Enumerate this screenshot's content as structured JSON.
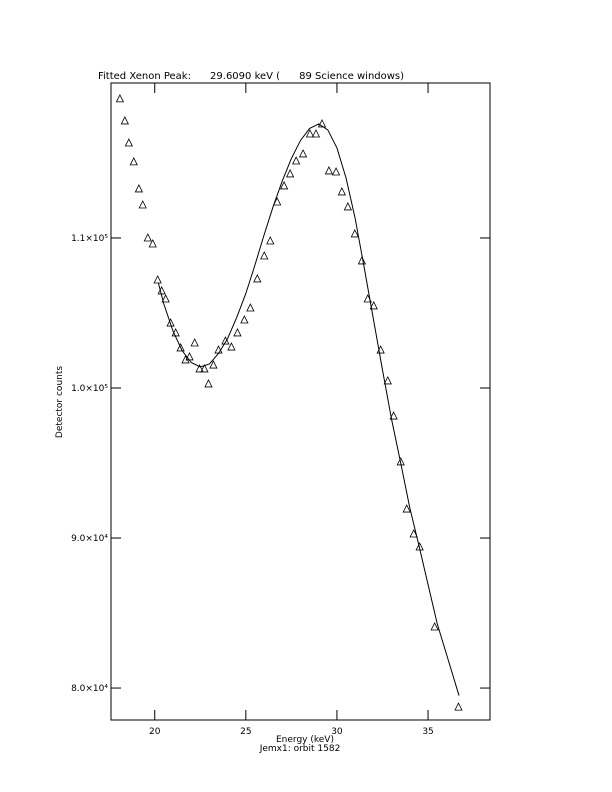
{
  "chart_data": {
    "type": "scatter",
    "title": "Fitted Xenon Peak:      29.6090 keV (      89 Science windows)",
    "x_label": "Energy (keV)",
    "subtitle": "Jemx1: orbit 1582",
    "y_label": "Detector counts",
    "xlim": [
      17.6,
      38.4
    ],
    "xticks": [
      20,
      25,
      30,
      35
    ],
    "ylim": [
      77870,
      120330
    ],
    "yticks": [
      {
        "value": 110000,
        "label": "1.1×10⁵"
      },
      {
        "value": 100000,
        "label": "1.0×10⁵"
      },
      {
        "value": 90000,
        "label": "9.0×10⁴"
      },
      {
        "value": 80000,
        "label": "8.0×10⁴"
      }
    ],
    "series": [
      {
        "type": "scatter",
        "color": "#000000",
        "x": [
          18.09,
          18.36,
          18.58,
          18.85,
          19.13,
          19.34,
          19.62,
          19.89,
          20.16,
          20.38,
          20.6,
          20.87,
          21.15,
          21.42,
          21.69,
          21.91,
          22.19,
          22.46,
          22.73,
          22.95,
          23.22,
          23.5,
          23.88,
          24.21,
          24.54,
          24.92,
          25.25,
          25.63,
          26.01,
          26.34,
          26.72,
          27.1,
          27.43,
          27.76,
          28.14,
          28.52,
          28.85,
          29.18,
          29.56,
          29.95,
          30.27,
          30.6,
          30.98,
          31.37,
          31.69,
          32.02,
          32.4,
          32.79,
          33.11,
          33.5,
          33.83,
          34.21,
          34.54,
          35.36,
          36.67
        ],
        "values": [
          119270,
          117800,
          116330,
          115070,
          113270,
          112200,
          110000,
          109600,
          107200,
          106470,
          105930,
          104330,
          103670,
          102670,
          101870,
          102070,
          103000,
          101270,
          101270,
          100270,
          101530,
          102530,
          103130,
          102730,
          103670,
          104530,
          105330,
          107270,
          108800,
          109800,
          112400,
          113470,
          114270,
          115130,
          115600,
          116930,
          116930,
          117600,
          114470,
          114400,
          113070,
          112070,
          110270,
          108470,
          105930,
          105470,
          102530,
          100470,
          98130,
          95070,
          91930,
          90270,
          89400,
          84070,
          78730
        ]
      },
      {
        "type": "line",
        "color": "#000000",
        "x": [
          20.2,
          20.5,
          21,
          21.5,
          22,
          22.5,
          23,
          23.5,
          24,
          24.5,
          25,
          25.5,
          26,
          26.5,
          27,
          27.5,
          28,
          28.5,
          29,
          29.5,
          30,
          30.5,
          31,
          31.5,
          32,
          32.5,
          33,
          33.5,
          34,
          34.5,
          35,
          35.5,
          36,
          36.7
        ],
        "values": [
          107000,
          105600,
          103800,
          102500,
          101700,
          101400,
          101600,
          102300,
          103300,
          104700,
          106300,
          108200,
          110200,
          112100,
          113800,
          115300,
          116500,
          117300,
          117600,
          117200,
          116000,
          114000,
          111300,
          108000,
          104600,
          101200,
          97900,
          95000,
          92000,
          89500,
          86900,
          84300,
          82300,
          79500
        ]
      }
    ]
  }
}
